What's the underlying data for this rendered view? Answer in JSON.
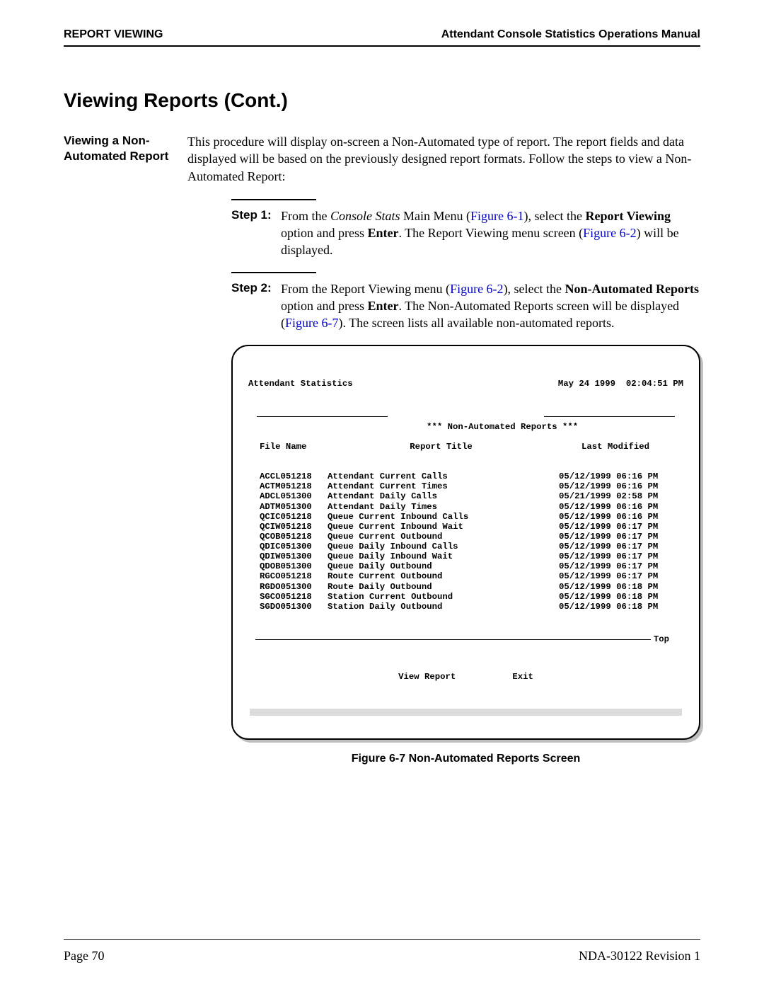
{
  "header": {
    "left": "REPORT VIEWING",
    "right": "Attendant Console Statistics Operations Manual"
  },
  "section_title": "Viewing Reports (Cont.)",
  "subsection_title_line1": "Viewing a Non-",
  "subsection_title_line2": "Automated Report",
  "intro": "This procedure will display on-screen a Non-Automated type of report. The report fields and data displayed will be based on the previously designed report formats. Follow the steps to view a Non-Automated Report:",
  "steps": {
    "s1": {
      "label": "Step 1:",
      "pre1": "From the ",
      "italic1": "Console Stats",
      "mid1": " Main Menu (",
      "link1": "Figure 6-1",
      "mid2": "), select the ",
      "bold1": "Report Viewing",
      "mid3": " option and press ",
      "bold2": "Enter",
      "mid4": ". The Report Viewing menu screen (",
      "link2": "Figure 6-2",
      "end": ") will be displayed."
    },
    "s2": {
      "label": "Step 2:",
      "pre1": "From the Report Viewing menu (",
      "link1": "Figure 6-2",
      "mid1": "), select the ",
      "bold1": "Non-Automated Reports",
      "mid2": " option and press ",
      "bold2": "Enter",
      "mid3": ". The Non-Automated Reports screen will be displayed (",
      "link2": "Figure 6-7",
      "end": "). The screen lists all available non-automated reports."
    }
  },
  "terminal": {
    "title_left": "Attendant Statistics",
    "title_right": "May 24 1999  02:04:51 PM",
    "box_title": "*** Non-Automated Reports ***",
    "col_file": "File Name",
    "col_title": "Report Title",
    "col_modified": "Last Modified",
    "rows": [
      {
        "f": "ACCL051218",
        "t": "Attendant Current Calls",
        "m": "05/12/1999 06:16 PM"
      },
      {
        "f": "ACTM051218",
        "t": "Attendant Current Times",
        "m": "05/12/1999 06:16 PM"
      },
      {
        "f": "ADCL051300",
        "t": "Attendant Daily Calls",
        "m": "05/21/1999 02:58 PM"
      },
      {
        "f": "ADTM051300",
        "t": "Attendant Daily Times",
        "m": "05/12/1999 06:16 PM"
      },
      {
        "f": "QCIC051218",
        "t": "Queue Current Inbound Calls",
        "m": "05/12/1999 06:16 PM"
      },
      {
        "f": "QCIW051218",
        "t": "Queue Current Inbound Wait",
        "m": "05/12/1999 06:17 PM"
      },
      {
        "f": "QCOB051218",
        "t": "Queue Current Outbound",
        "m": "05/12/1999 06:17 PM"
      },
      {
        "f": "QDIC051300",
        "t": "Queue Daily Inbound Calls",
        "m": "05/12/1999 06:17 PM"
      },
      {
        "f": "QDIW051300",
        "t": "Queue Daily Inbound Wait",
        "m": "05/12/1999 06:17 PM"
      },
      {
        "f": "QDOB051300",
        "t": "Queue Daily Outbound",
        "m": "05/12/1999 06:17 PM"
      },
      {
        "f": "RGCO051218",
        "t": "Route Current Outbound",
        "m": "05/12/1999 06:17 PM"
      },
      {
        "f": "RGDO051300",
        "t": "Route Daily Outbound",
        "m": "05/12/1999 06:18 PM"
      },
      {
        "f": "SGCO051218",
        "t": "Station Current Outbound",
        "m": "05/12/1999 06:18 PM"
      },
      {
        "f": "SGDO051300",
        "t": "Station Daily Outbound",
        "m": "05/12/1999 06:18 PM"
      }
    ],
    "top_indicator": "Top",
    "btn_view": "View Report",
    "btn_exit": "Exit"
  },
  "figure_caption": "Figure 6-7   Non-Automated Reports Screen",
  "footer": {
    "left": "Page 70",
    "right": "NDA-30122   Revision 1"
  },
  "colors": {
    "link": "#0000cc",
    "text": "#000000",
    "shadow": "#bfbfbf",
    "scroll": "#dcdcdc"
  }
}
